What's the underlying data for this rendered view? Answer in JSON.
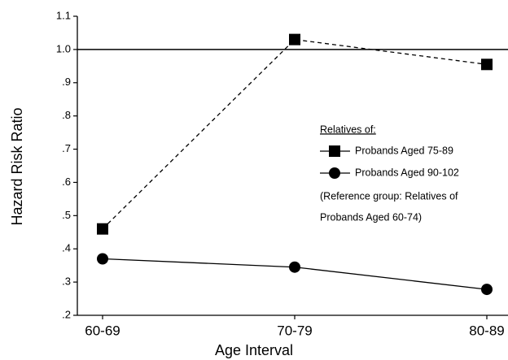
{
  "chart_data": {
    "type": "line",
    "x_label": "Age Interval",
    "y_label": "Hazard Risk Ratio",
    "categories": [
      "60-69",
      "70-79",
      "80-89"
    ],
    "series": [
      {
        "name": "Probands Aged 75-89",
        "color": "#000000",
        "marker": "square",
        "line_style": "dashed",
        "values": [
          0.46,
          1.03,
          0.955
        ]
      },
      {
        "name": "Probands Aged 90-102",
        "color": "#000000",
        "marker": "circle",
        "line_style": "solid",
        "values": [
          0.37,
          0.345,
          0.278
        ]
      }
    ],
    "ylim": [
      0.2,
      1.1
    ],
    "yticks": [
      {
        "value": 0.2,
        "label": ".2"
      },
      {
        "value": 0.3,
        "label": ".3"
      },
      {
        "value": 0.4,
        "label": ".4"
      },
      {
        "value": 0.5,
        "label": ".5"
      },
      {
        "value": 0.6,
        "label": ".6"
      },
      {
        "value": 0.7,
        "label": ".7"
      },
      {
        "value": 0.8,
        "label": ".8"
      },
      {
        "value": 0.9,
        "label": ".9"
      },
      {
        "value": 1,
        "label": "1.0"
      },
      1.1
    ],
    "reference_line": 1,
    "legend_title": "Relatives of:",
    "legend_note": [
      "(Reference group: Relatives of",
      "Probands Aged 60-74)"
    ]
  }
}
